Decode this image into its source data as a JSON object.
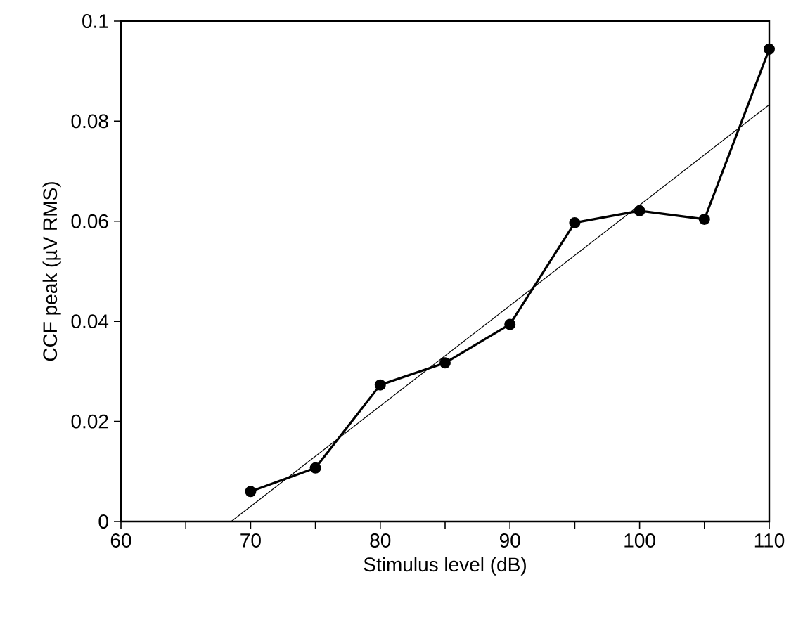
{
  "chart_data": {
    "type": "line",
    "xlabel": "Stimulus level (dB)",
    "ylabel": "CCF peak (µV RMS)",
    "x": [
      70,
      75,
      80,
      85,
      90,
      95,
      100,
      105,
      110
    ],
    "series": [
      {
        "color": "#000000",
        "marker": "circle",
        "values": [
          0.006,
          0.0107,
          0.0273,
          0.0317,
          0.0394,
          0.0597,
          0.0621,
          0.0604,
          0.0944
        ]
      },
      {
        "type": "line",
        "color": "#000000",
        "marker": "none",
        "x": [
          68.5,
          110
        ],
        "values": [
          0,
          0.0833
        ]
      }
    ],
    "xlim": [
      60,
      110
    ],
    "ylim": [
      0,
      0.1
    ],
    "xticks": [
      60,
      {
        "value": 65,
        "label": null
      },
      70,
      {
        "value": 75,
        "label": null
      },
      80,
      {
        "value": 85,
        "label": null
      },
      90,
      {
        "value": 95,
        "label": null
      },
      100,
      {
        "value": 105,
        "label": null
      },
      110
    ],
    "yticks": [
      0,
      0.02,
      0.04,
      0.06,
      0.08,
      0.1
    ]
  }
}
